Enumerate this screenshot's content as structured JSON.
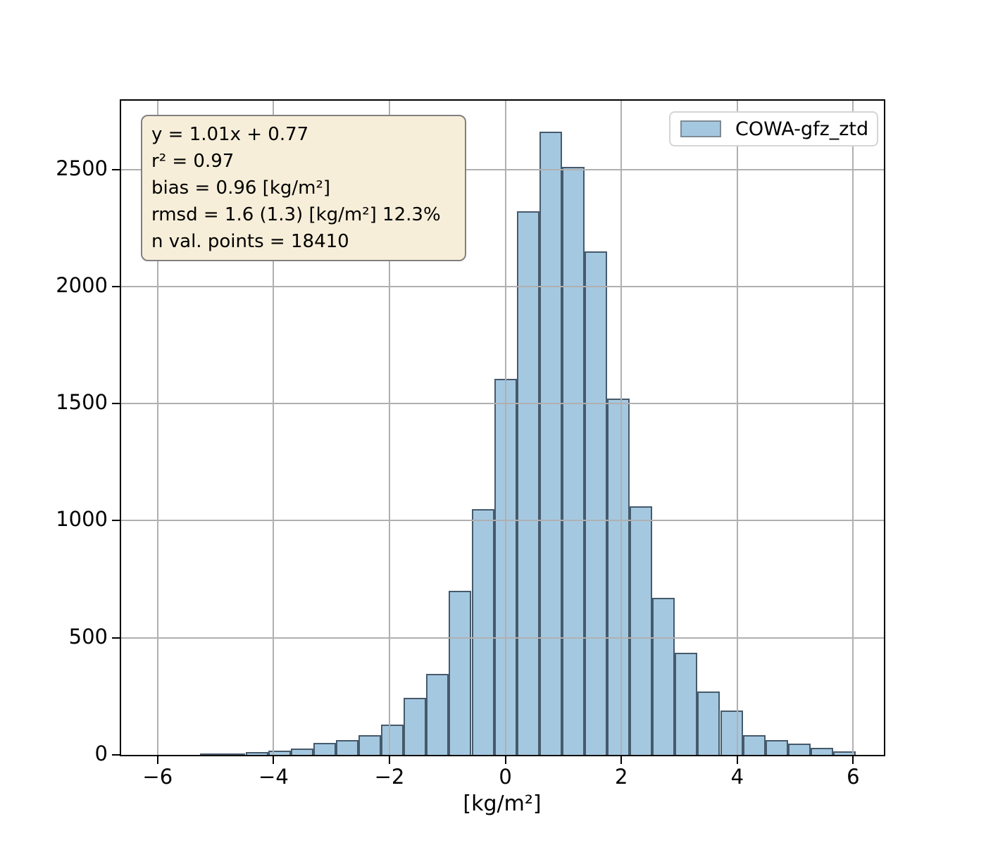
{
  "figure": {
    "background": "#ffffff",
    "legend_label": "COWA-gfz_ztd",
    "colors": {
      "bar_fill": "#a5c8e1",
      "bar_edge": "#465a6b",
      "grid": "#b0b0b0",
      "spine": "#000000",
      "stats_box_bg": "#f7eed9",
      "stats_box_border": "#808080",
      "legend_border": "#d5d5d5",
      "legend_patch_fill": "#a5c8e1",
      "legend_patch_edge": "#7e8b94"
    }
  },
  "chart_data": {
    "type": "bar",
    "subtype": "histogram",
    "title": "",
    "xlabel": "[kg/m²]",
    "ylabel": "",
    "legend_entries": [
      "COWA-gfz_ztd"
    ],
    "legend_position": "upper right",
    "grid": true,
    "grid_above_bars": true,
    "xlim": [
      -6.63,
      6.53
    ],
    "ylim": [
      0,
      2793
    ],
    "xtick_values": [
      -6,
      -4,
      -2,
      0,
      2,
      4,
      6
    ],
    "xtick_labels": [
      "−6",
      "−4",
      "−2",
      "0",
      "2",
      "4",
      "6"
    ],
    "ytick_values": [
      0,
      500,
      1000,
      1500,
      2000,
      2500
    ],
    "ytick_labels": [
      "0",
      "500",
      "1000",
      "1500",
      "2000",
      "2500"
    ],
    "bin_start": -5.265,
    "bin_width": 0.39,
    "counts": [
      3,
      7,
      12,
      18,
      27,
      50,
      63,
      85,
      130,
      245,
      345,
      700,
      1050,
      1605,
      2320,
      2660,
      2510,
      2150,
      1520,
      1060,
      672,
      435,
      270,
      190,
      85,
      62,
      47,
      30,
      14
    ],
    "annotation_lines": [
      "y = 1.01x + 0.77",
      "r² = 0.97",
      "bias = 0.96 [kg/m²]",
      "rmsd = 1.6 (1.3) [kg/m²] 12.3%",
      "n val. points = 18410"
    ]
  }
}
